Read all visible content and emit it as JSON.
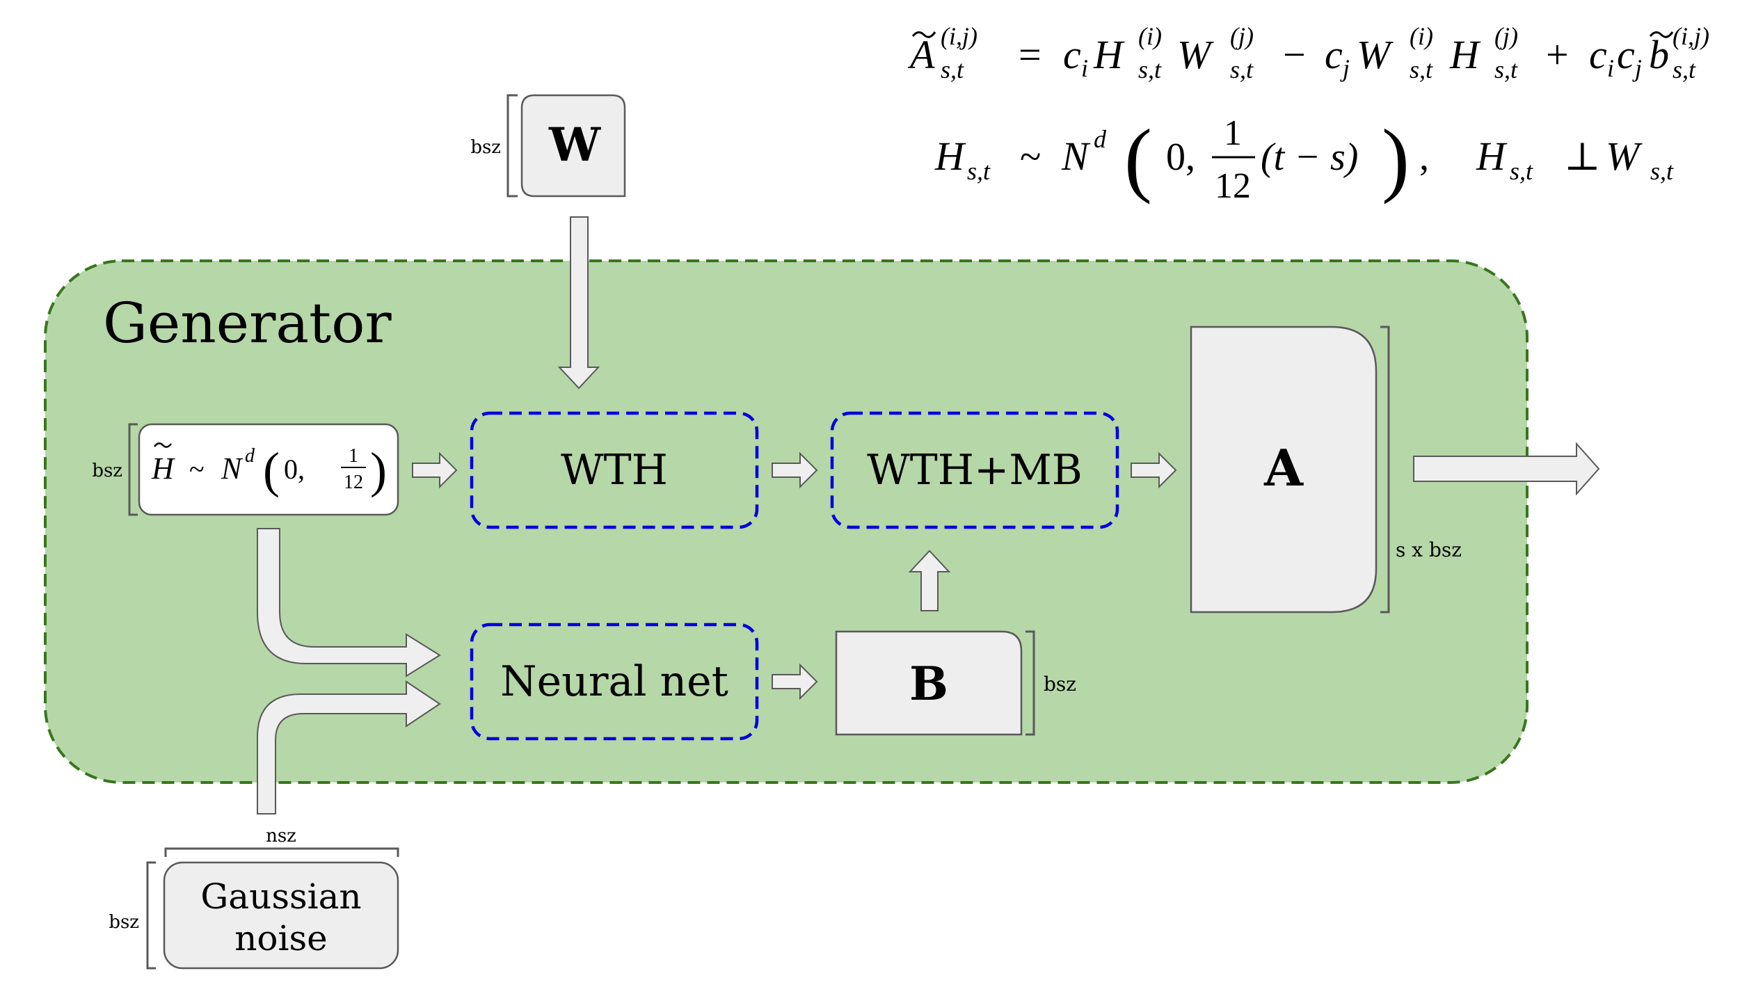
{
  "generator": {
    "title": "Generator"
  },
  "nodes": {
    "w": {
      "label": "W",
      "dim_left": "bsz"
    },
    "h_dist": {
      "dim_left": "bsz",
      "lhs": "H",
      "sim": "~",
      "script_n": "N",
      "sup_d": "d",
      "zero": "0,",
      "frac_num": "1",
      "frac_den": "12"
    },
    "wth": {
      "label": "WTH"
    },
    "wth_mb": {
      "label": "WTH+MB"
    },
    "a": {
      "label": "A",
      "dim_right": "s x bsz"
    },
    "neural_net": {
      "label": "Neural net"
    },
    "b": {
      "label": "B",
      "dim_right": "bsz"
    },
    "noise": {
      "label_line1": "Gaussian",
      "label_line2": "noise",
      "dim_left": "bsz",
      "dim_top": "nsz"
    }
  },
  "equations": {
    "eq1": {
      "A": "A",
      "A_sup": "(i,j)",
      "A_sub": "s,t",
      "eq": "=",
      "c_i": "c",
      "c_i_sub": "i",
      "H1": "H",
      "H1_sup": "(i)",
      "H1_sub": "s,t",
      "W1": "W",
      "W1_sup": "(j)",
      "W1_sub": "s,t",
      "minus": "−",
      "c_j": "c",
      "c_j_sub": "j",
      "W2": "W",
      "W2_sup": "(i)",
      "W2_sub": "s,t",
      "H2": "H",
      "H2_sup": "(j)",
      "H2_sub": "s,t",
      "plus": "+",
      "c3": "c",
      "c3_sub": "i",
      "c4": "c",
      "c4_sub": "j",
      "b": "b",
      "b_sup": "(i,j)",
      "b_sub": "s,t"
    },
    "eq2": {
      "H": "H",
      "H_sub": "s,t",
      "sim": "~",
      "N": "N",
      "N_sup": "d",
      "zero": "0,",
      "frac_num": "1",
      "frac_den": "12",
      "tail": "(t − s)",
      "comma": ",",
      "H2": "H",
      "H2_sub": "s,t",
      "perp": "⊥",
      "W": "W",
      "W_sub": "s,t"
    }
  }
}
